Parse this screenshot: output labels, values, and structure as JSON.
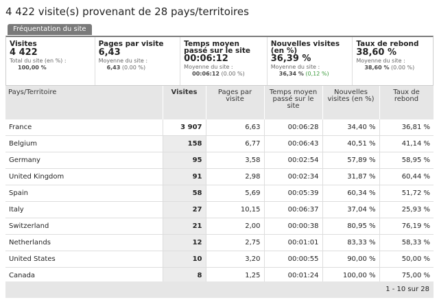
{
  "header": {
    "title": "4 422 visite(s) provenant de 28 pays/territoires",
    "tab": "Fréquentation du site"
  },
  "summary": [
    {
      "title": "Visites",
      "value": "4 422",
      "avg_label": "Total du site (en %) :",
      "avg_value": "100,00 %"
    },
    {
      "title": "Pages par visite",
      "value": "6,43",
      "avg_label": "Moyenne du site :",
      "avg_value": "6,43",
      "avg_change": "(0.00 %)"
    },
    {
      "title": "Temps moyen passé sur le site",
      "value": "00:06:12",
      "avg_label": "Moyenne du site :",
      "avg_value": "00:06:12",
      "avg_change": "(0.00 %)"
    },
    {
      "title": "Nouvelles visites (en %)",
      "value": "36,39 %",
      "avg_label": "Moyenne du site :",
      "avg_value": "36,34 %",
      "avg_change": "(0,12 %)"
    },
    {
      "title": "Taux de rebond",
      "value": "38,60 %",
      "avg_label": "Moyenne du site :",
      "avg_value": "38,60 %",
      "avg_change": "(0.00 %)"
    }
  ],
  "table": {
    "columns": [
      "Pays/Territoire",
      "Visites",
      "Pages par visite",
      "Temps moyen passé sur le site",
      "Nouvelles visites (en %)",
      "Taux de rebond"
    ],
    "rows": [
      [
        "France",
        "3 907",
        "6,63",
        "00:06:28",
        "34,40 %",
        "36,81 %"
      ],
      [
        "Belgium",
        "158",
        "6,77",
        "00:06:43",
        "40,51 %",
        "41,14 %"
      ],
      [
        "Germany",
        "95",
        "3,58",
        "00:02:54",
        "57,89 %",
        "58,95 %"
      ],
      [
        "United Kingdom",
        "91",
        "2,98",
        "00:02:34",
        "31,87 %",
        "60,44 %"
      ],
      [
        "Spain",
        "58",
        "5,69",
        "00:05:39",
        "60,34 %",
        "51,72 %"
      ],
      [
        "Italy",
        "27",
        "10,15",
        "00:06:37",
        "37,04 %",
        "25,93 %"
      ],
      [
        "Switzerland",
        "21",
        "2,00",
        "00:00:38",
        "80,95 %",
        "76,19 %"
      ],
      [
        "Netherlands",
        "12",
        "2,75",
        "00:01:01",
        "83,33 %",
        "58,33 %"
      ],
      [
        "United States",
        "10",
        "3,20",
        "00:00:55",
        "90,00 %",
        "50,00 %"
      ],
      [
        "Canada",
        "8",
        "1,25",
        "00:01:24",
        "100,00 %",
        "75,00 %"
      ]
    ]
  },
  "footer": {
    "pagination": "1 - 10 sur 28"
  }
}
